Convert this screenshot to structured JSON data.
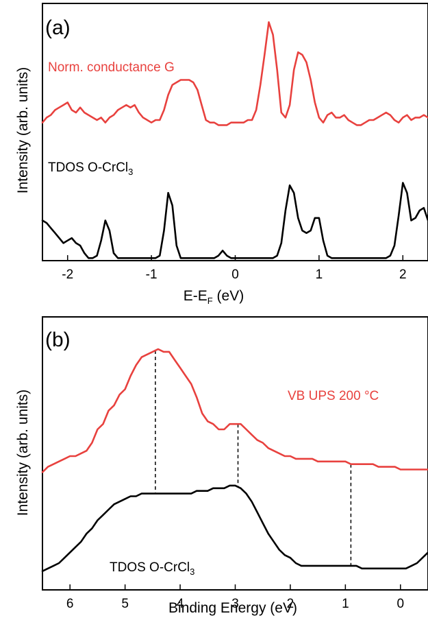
{
  "chart_data": [
    {
      "type": "line",
      "panel_label": "(a)",
      "xlabel": {
        "main": "E-E",
        "sub": "F",
        "tail": " (eV)"
      },
      "ylabel": "Intensity (arb. units)",
      "xlim": [
        -2.3,
        2.3
      ],
      "ylim": [
        0,
        1
      ],
      "x_reversed": false,
      "xticks": [
        -2,
        -1,
        0,
        1,
        2
      ],
      "xtick_labels": [
        "-2",
        "-1",
        "0",
        "1",
        "2"
      ],
      "y_ticks_shown": false,
      "annotations": [
        {
          "text": "Norm. conductance G",
          "color": "#e8413e"
        },
        {
          "text": "TDOS O-CrCl",
          "sub": "3",
          "color": "#000000"
        }
      ],
      "series": [
        {
          "color": "#e8413e",
          "x": [
            -2.3,
            -2.25,
            -2.2,
            -2.15,
            -2.1,
            -2.05,
            -2.0,
            -1.95,
            -1.9,
            -1.85,
            -1.8,
            -1.75,
            -1.7,
            -1.65,
            -1.6,
            -1.55,
            -1.5,
            -1.45,
            -1.4,
            -1.35,
            -1.3,
            -1.25,
            -1.2,
            -1.15,
            -1.1,
            -1.05,
            -1.0,
            -0.95,
            -0.9,
            -0.85,
            -0.8,
            -0.75,
            -0.7,
            -0.65,
            -0.6,
            -0.55,
            -0.5,
            -0.45,
            -0.4,
            -0.35,
            -0.3,
            -0.25,
            -0.2,
            -0.15,
            -0.1,
            -0.05,
            0.0,
            0.05,
            0.1,
            0.15,
            0.2,
            0.25,
            0.3,
            0.35,
            0.4,
            0.45,
            0.5,
            0.55,
            0.6,
            0.65,
            0.7,
            0.75,
            0.8,
            0.85,
            0.9,
            0.95,
            1.0,
            1.05,
            1.1,
            1.15,
            1.2,
            1.25,
            1.3,
            1.35,
            1.4,
            1.45,
            1.5,
            1.55,
            1.6,
            1.65,
            1.7,
            1.75,
            1.8,
            1.85,
            1.9,
            1.95,
            2.0,
            2.05,
            2.1,
            2.15,
            2.2,
            2.25,
            2.3
          ],
          "y": [
            0.55,
            0.57,
            0.58,
            0.6,
            0.61,
            0.62,
            0.63,
            0.6,
            0.59,
            0.61,
            0.59,
            0.58,
            0.57,
            0.56,
            0.57,
            0.55,
            0.57,
            0.58,
            0.6,
            0.61,
            0.62,
            0.61,
            0.62,
            0.59,
            0.57,
            0.56,
            0.55,
            0.56,
            0.56,
            0.6,
            0.66,
            0.7,
            0.71,
            0.72,
            0.72,
            0.72,
            0.71,
            0.68,
            0.62,
            0.56,
            0.55,
            0.55,
            0.54,
            0.54,
            0.54,
            0.55,
            0.55,
            0.55,
            0.55,
            0.56,
            0.56,
            0.6,
            0.7,
            0.82,
            0.95,
            0.9,
            0.76,
            0.59,
            0.57,
            0.62,
            0.76,
            0.83,
            0.82,
            0.79,
            0.72,
            0.63,
            0.57,
            0.55,
            0.58,
            0.59,
            0.57,
            0.57,
            0.58,
            0.56,
            0.55,
            0.54,
            0.54,
            0.55,
            0.56,
            0.56,
            0.57,
            0.58,
            0.59,
            0.58,
            0.56,
            0.55,
            0.57,
            0.58,
            0.56,
            0.57,
            0.57,
            0.58,
            0.57
          ]
        },
        {
          "color": "#000000",
          "x": [
            -2.3,
            -2.25,
            -2.2,
            -2.15,
            -2.1,
            -2.05,
            -2.0,
            -1.95,
            -1.9,
            -1.85,
            -1.8,
            -1.75,
            -1.7,
            -1.65,
            -1.6,
            -1.55,
            -1.5,
            -1.45,
            -1.4,
            -1.35,
            -1.3,
            -1.25,
            -1.2,
            -1.15,
            -1.1,
            -1.05,
            -1.0,
            -0.95,
            -0.9,
            -0.85,
            -0.8,
            -0.75,
            -0.7,
            -0.65,
            -0.6,
            -0.55,
            -0.5,
            -0.45,
            -0.4,
            -0.35,
            -0.3,
            -0.25,
            -0.2,
            -0.15,
            -0.1,
            -0.05,
            0.0,
            0.05,
            0.1,
            0.15,
            0.2,
            0.25,
            0.3,
            0.35,
            0.4,
            0.45,
            0.5,
            0.55,
            0.6,
            0.65,
            0.7,
            0.75,
            0.8,
            0.85,
            0.9,
            0.95,
            1.0,
            1.05,
            1.1,
            1.15,
            1.2,
            1.25,
            1.3,
            1.35,
            1.4,
            1.45,
            1.5,
            1.55,
            1.6,
            1.65,
            1.7,
            1.75,
            1.8,
            1.85,
            1.9,
            1.95,
            2.0,
            2.05,
            2.1,
            2.15,
            2.2,
            2.25,
            2.3
          ],
          "y": [
            0.16,
            0.15,
            0.13,
            0.11,
            0.09,
            0.07,
            0.08,
            0.09,
            0.07,
            0.06,
            0.03,
            0.01,
            0.01,
            0.02,
            0.08,
            0.16,
            0.12,
            0.03,
            0.01,
            0.01,
            0.01,
            0.01,
            0.01,
            0.01,
            0.01,
            0.01,
            0.01,
            0.01,
            0.02,
            0.12,
            0.27,
            0.22,
            0.06,
            0.01,
            0.01,
            0.01,
            0.01,
            0.01,
            0.01,
            0.01,
            0.01,
            0.01,
            0.02,
            0.04,
            0.02,
            0.01,
            0.01,
            0.01,
            0.01,
            0.01,
            0.01,
            0.01,
            0.01,
            0.01,
            0.01,
            0.01,
            0.02,
            0.07,
            0.2,
            0.3,
            0.27,
            0.17,
            0.12,
            0.11,
            0.12,
            0.17,
            0.17,
            0.08,
            0.02,
            0.01,
            0.01,
            0.01,
            0.01,
            0.01,
            0.01,
            0.01,
            0.01,
            0.01,
            0.01,
            0.01,
            0.01,
            0.01,
            0.01,
            0.02,
            0.06,
            0.18,
            0.31,
            0.27,
            0.16,
            0.17,
            0.2,
            0.21,
            0.16
          ]
        }
      ]
    },
    {
      "type": "line",
      "panel_label": "(b)",
      "xlabel": "Binding Energy (eV)",
      "ylabel": "Intensity (arb. units)",
      "xlim": [
        6.5,
        -0.5
      ],
      "ylim": [
        0,
        1
      ],
      "x_reversed": true,
      "xticks": [
        6,
        5,
        4,
        3,
        2,
        1,
        0
      ],
      "xtick_labels": [
        "6",
        "5",
        "4",
        "3",
        "2",
        "1",
        "0"
      ],
      "y_ticks_shown": false,
      "annotations": [
        {
          "text": "VB UPS 200 °C",
          "color": "#e8413e"
        },
        {
          "text": "TDOS O-CrCl",
          "sub": "3",
          "color": "#000000"
        }
      ],
      "reference_lines_x": [
        4.45,
        2.95,
        0.9
      ],
      "series": [
        {
          "color": "#e8413e",
          "x": [
            6.5,
            6.4,
            6.3,
            6.2,
            6.1,
            6.0,
            5.9,
            5.8,
            5.7,
            5.6,
            5.5,
            5.4,
            5.3,
            5.2,
            5.1,
            5.0,
            4.9,
            4.8,
            4.7,
            4.6,
            4.5,
            4.4,
            4.3,
            4.2,
            4.1,
            4.0,
            3.9,
            3.8,
            3.7,
            3.6,
            3.5,
            3.4,
            3.3,
            3.2,
            3.1,
            3.0,
            2.9,
            2.8,
            2.7,
            2.6,
            2.5,
            2.4,
            2.3,
            2.2,
            2.1,
            2.0,
            1.9,
            1.8,
            1.7,
            1.6,
            1.5,
            1.4,
            1.3,
            1.2,
            1.1,
            1.0,
            0.9,
            0.8,
            0.7,
            0.6,
            0.5,
            0.4,
            0.3,
            0.2,
            0.1,
            0.0,
            -0.1,
            -0.2,
            -0.3,
            -0.4,
            -0.5
          ],
          "y": [
            0.44,
            0.46,
            0.47,
            0.48,
            0.49,
            0.5,
            0.5,
            0.51,
            0.52,
            0.55,
            0.6,
            0.62,
            0.67,
            0.69,
            0.73,
            0.75,
            0.8,
            0.84,
            0.87,
            0.88,
            0.89,
            0.9,
            0.89,
            0.89,
            0.86,
            0.83,
            0.8,
            0.77,
            0.72,
            0.66,
            0.63,
            0.62,
            0.6,
            0.6,
            0.62,
            0.62,
            0.62,
            0.6,
            0.58,
            0.56,
            0.55,
            0.53,
            0.52,
            0.51,
            0.5,
            0.5,
            0.49,
            0.49,
            0.49,
            0.49,
            0.48,
            0.48,
            0.48,
            0.48,
            0.48,
            0.48,
            0.47,
            0.47,
            0.47,
            0.47,
            0.47,
            0.46,
            0.46,
            0.46,
            0.46,
            0.45,
            0.45,
            0.45,
            0.45,
            0.45,
            0.45
          ]
        },
        {
          "color": "#000000",
          "x": [
            6.5,
            6.4,
            6.3,
            6.2,
            6.1,
            6.0,
            5.9,
            5.8,
            5.7,
            5.6,
            5.5,
            5.4,
            5.3,
            5.2,
            5.1,
            5.0,
            4.9,
            4.8,
            4.7,
            4.6,
            4.5,
            4.4,
            4.3,
            4.2,
            4.1,
            4.0,
            3.9,
            3.8,
            3.7,
            3.6,
            3.5,
            3.4,
            3.3,
            3.2,
            3.1,
            3.0,
            2.9,
            2.8,
            2.7,
            2.6,
            2.5,
            2.4,
            2.3,
            2.2,
            2.1,
            2.0,
            1.9,
            1.8,
            1.7,
            1.6,
            1.5,
            1.4,
            1.3,
            1.2,
            1.1,
            1.0,
            0.9,
            0.8,
            0.7,
            0.6,
            0.5,
            0.4,
            0.3,
            0.2,
            0.1,
            0.0,
            -0.1,
            -0.2,
            -0.3,
            -0.4,
            -0.5
          ],
          "y": [
            0.07,
            0.08,
            0.09,
            0.1,
            0.12,
            0.14,
            0.16,
            0.18,
            0.21,
            0.23,
            0.26,
            0.28,
            0.3,
            0.32,
            0.33,
            0.34,
            0.35,
            0.35,
            0.36,
            0.36,
            0.36,
            0.36,
            0.36,
            0.36,
            0.36,
            0.36,
            0.36,
            0.36,
            0.37,
            0.37,
            0.37,
            0.38,
            0.38,
            0.38,
            0.39,
            0.39,
            0.38,
            0.36,
            0.33,
            0.29,
            0.25,
            0.21,
            0.18,
            0.15,
            0.13,
            0.12,
            0.1,
            0.09,
            0.09,
            0.09,
            0.09,
            0.09,
            0.09,
            0.09,
            0.09,
            0.09,
            0.09,
            0.09,
            0.08,
            0.08,
            0.08,
            0.08,
            0.08,
            0.08,
            0.08,
            0.08,
            0.08,
            0.09,
            0.1,
            0.12,
            0.14
          ]
        }
      ]
    }
  ]
}
